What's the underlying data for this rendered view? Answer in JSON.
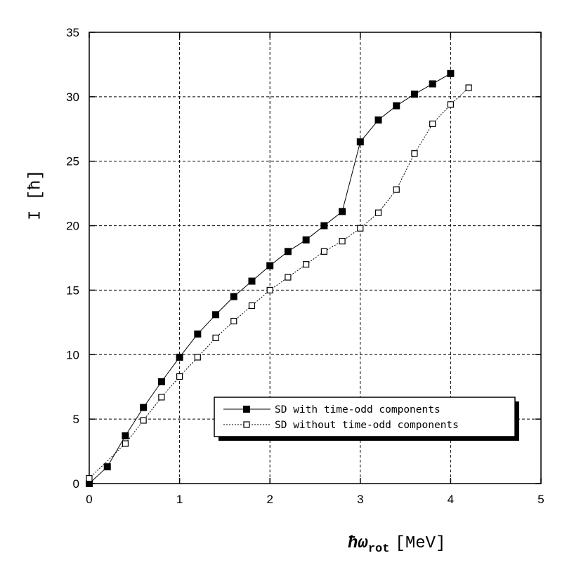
{
  "chart_data": {
    "type": "line",
    "xlabel_prefix": "ħω",
    "xlabel_sub": "rot",
    "xlabel_unit": "[MeV]",
    "ylabel": "I [ħ]",
    "xlim": [
      0,
      5
    ],
    "ylim": [
      0,
      35
    ],
    "xticks": [
      "0",
      "1",
      "2",
      "3",
      "4",
      "5"
    ],
    "yticks": [
      "0",
      "5",
      "10",
      "15",
      "20",
      "25",
      "30",
      "35"
    ],
    "grid": true,
    "legend_position": "lower-right",
    "series": [
      {
        "name": "SD  with   time-odd components",
        "marker": "filled-square",
        "line": "solid",
        "x": [
          0.0,
          0.2,
          0.4,
          0.6,
          0.8,
          1.0,
          1.2,
          1.4,
          1.6,
          1.8,
          2.0,
          2.2,
          2.4,
          2.6,
          2.8,
          3.0,
          3.2,
          3.4,
          3.6,
          3.8,
          4.0
        ],
        "y": [
          0.0,
          1.3,
          3.7,
          5.9,
          7.9,
          9.8,
          11.6,
          13.1,
          14.5,
          15.7,
          16.9,
          18.0,
          18.9,
          20.0,
          21.1,
          26.5,
          28.2,
          29.3,
          30.2,
          31.0,
          31.8
        ]
      },
      {
        "name": "SD without time-odd components",
        "marker": "open-square",
        "line": "dotted",
        "x": [
          0.0,
          0.4,
          0.6,
          0.8,
          1.0,
          1.2,
          1.4,
          1.6,
          1.8,
          2.0,
          2.2,
          2.4,
          2.6,
          2.8,
          3.0,
          3.2,
          3.4,
          3.6,
          3.8,
          4.0,
          4.2
        ],
        "y": [
          0.4,
          3.1,
          4.9,
          6.7,
          8.3,
          9.8,
          11.3,
          12.6,
          13.8,
          15.0,
          16.0,
          17.0,
          18.0,
          18.8,
          19.8,
          21.0,
          22.8,
          25.6,
          27.9,
          29.4,
          30.7
        ]
      }
    ]
  }
}
